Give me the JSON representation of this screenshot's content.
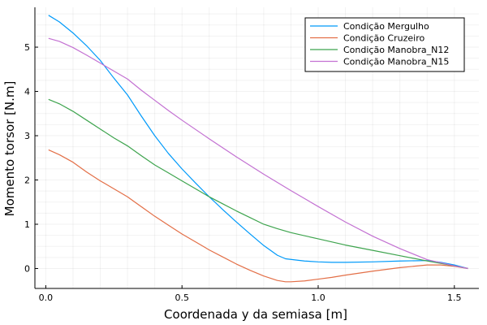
{
  "chart_data": {
    "type": "line",
    "title": "",
    "xlabel": "Coordenada y da semiasa [m]",
    "ylabel": "Momento torsor [N.m]",
    "xlim": [
      -0.04,
      1.59
    ],
    "ylim": [
      -0.45,
      5.9
    ],
    "xticks": [
      0.0,
      0.5,
      1.0,
      1.5
    ],
    "xtick_labels": [
      "0.0",
      "0.5",
      "1.0",
      "1.5"
    ],
    "yticks": [
      0,
      1,
      2,
      3,
      4,
      5
    ],
    "ytick_labels": [
      "0",
      "1",
      "2",
      "3",
      "4",
      "5"
    ],
    "grid": true,
    "legend_position": "top-right",
    "series": [
      {
        "name": "Condição Mergulho",
        "color": "#009AFA",
        "x": [
          0.01,
          0.05,
          0.1,
          0.15,
          0.2,
          0.25,
          0.3,
          0.35,
          0.4,
          0.45,
          0.5,
          0.55,
          0.6,
          0.65,
          0.7,
          0.75,
          0.8,
          0.85,
          0.88,
          0.95,
          1.0,
          1.05,
          1.1,
          1.2,
          1.3,
          1.4,
          1.45,
          1.5,
          1.55
        ],
        "y": [
          5.72,
          5.57,
          5.32,
          5.03,
          4.7,
          4.3,
          3.92,
          3.45,
          3.0,
          2.6,
          2.25,
          1.93,
          1.62,
          1.33,
          1.05,
          0.78,
          0.52,
          0.3,
          0.22,
          0.17,
          0.15,
          0.14,
          0.14,
          0.15,
          0.17,
          0.18,
          0.14,
          0.08,
          0.0
        ]
      },
      {
        "name": "Condição Cruzeiro",
        "color": "#E36F47",
        "x": [
          0.01,
          0.05,
          0.1,
          0.15,
          0.2,
          0.25,
          0.3,
          0.35,
          0.4,
          0.45,
          0.5,
          0.55,
          0.6,
          0.65,
          0.7,
          0.75,
          0.8,
          0.85,
          0.88,
          0.9,
          0.95,
          1.0,
          1.05,
          1.1,
          1.2,
          1.3,
          1.4,
          1.45,
          1.5,
          1.55
        ],
        "y": [
          2.68,
          2.57,
          2.4,
          2.18,
          1.98,
          1.8,
          1.62,
          1.4,
          1.18,
          0.98,
          0.78,
          0.6,
          0.42,
          0.26,
          0.1,
          -0.04,
          -0.17,
          -0.27,
          -0.3,
          -0.3,
          -0.28,
          -0.24,
          -0.2,
          -0.15,
          -0.06,
          0.02,
          0.08,
          0.08,
          0.05,
          0.0
        ]
      },
      {
        "name": "Condição Manobra_N12",
        "color": "#3EA44E",
        "x": [
          0.01,
          0.05,
          0.1,
          0.15,
          0.2,
          0.25,
          0.3,
          0.35,
          0.4,
          0.45,
          0.5,
          0.55,
          0.6,
          0.65,
          0.7,
          0.75,
          0.8,
          0.85,
          0.9,
          1.0,
          1.1,
          1.2,
          1.3,
          1.4,
          1.5,
          1.55
        ],
        "y": [
          3.82,
          3.72,
          3.55,
          3.35,
          3.15,
          2.95,
          2.77,
          2.55,
          2.34,
          2.16,
          1.98,
          1.8,
          1.62,
          1.46,
          1.3,
          1.15,
          1.0,
          0.9,
          0.81,
          0.67,
          0.53,
          0.41,
          0.29,
          0.17,
          0.06,
          0.0
        ]
      },
      {
        "name": "Condição Manobra_N15",
        "color": "#C371D2",
        "x": [
          0.01,
          0.05,
          0.1,
          0.15,
          0.2,
          0.25,
          0.3,
          0.35,
          0.4,
          0.45,
          0.5,
          0.6,
          0.7,
          0.8,
          0.9,
          1.0,
          1.1,
          1.2,
          1.3,
          1.4,
          1.5,
          1.55
        ],
        "y": [
          5.2,
          5.13,
          4.99,
          4.82,
          4.64,
          4.46,
          4.28,
          4.03,
          3.8,
          3.57,
          3.35,
          2.93,
          2.52,
          2.13,
          1.76,
          1.4,
          1.05,
          0.73,
          0.45,
          0.2,
          0.06,
          0.0
        ]
      }
    ]
  }
}
